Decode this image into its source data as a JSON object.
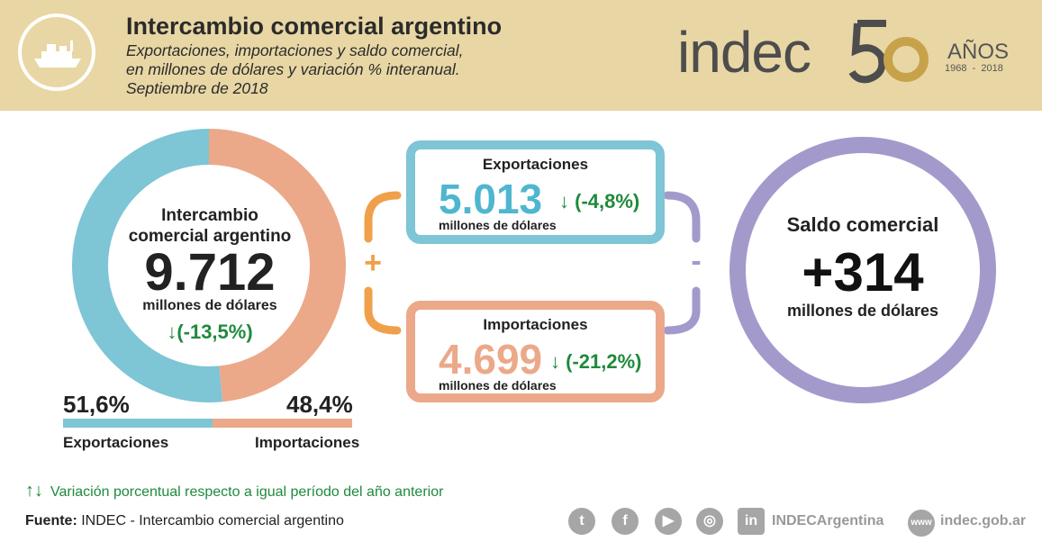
{
  "header": {
    "title": "Intercambio comercial argentino",
    "subtitle_line1": "Exportaciones, importaciones y saldo comercial,",
    "subtitle_line2": "en millones de dólares y variación % interanual.",
    "subtitle_line3": "Septiembre de 2018",
    "logo_text": "indec",
    "logo_number": "50",
    "logo_anos": "AÑOS",
    "logo_years": "1968  -  2018",
    "ship_icon": "ship-icon"
  },
  "colors": {
    "header_bg": "#e8d7a4",
    "exports": "#7ec5d6",
    "imports": "#eba98a",
    "saldo": "#a39acb",
    "connector_plus": "#f0a04b",
    "variation_green": "#1f8a3c",
    "export_number": "#4fb6cf",
    "import_number": "#eba98a"
  },
  "total": {
    "title": "Intercambio comercial argentino",
    "value": "9.712",
    "unit": "millones de dólares",
    "variation": "↓(-13,5%)",
    "share_exports_pct": 51.6,
    "share_imports_pct": 48.4
  },
  "shares": {
    "exports_label": "51,6%",
    "imports_label": "48,4%",
    "exports_name": "Exportaciones",
    "imports_name": "Importaciones"
  },
  "exports": {
    "title": "Exportaciones",
    "value": "5.013",
    "unit": "millones de dólares",
    "variation": "↓ (-4,8%)"
  },
  "imports": {
    "title": "Importaciones",
    "value": "4.699",
    "unit": "millones de dólares",
    "variation": "↓ (-21,2%)"
  },
  "operators": {
    "plus": "+",
    "minus": "-"
  },
  "saldo": {
    "title": "Saldo comercial",
    "value": "+314",
    "unit": "millones de dólares"
  },
  "footer": {
    "legend_arrows": "↑↓",
    "legend_text": "Variación porcentual respecto a igual período del año anterior",
    "source_label": "Fuente:",
    "source_text": " INDEC - Intercambio comercial argentino",
    "social_handle": "INDECArgentina",
    "www_badge": "www",
    "website": "indec.gob.ar",
    "social_icons": [
      "twitter-icon",
      "facebook-icon",
      "youtube-icon",
      "instagram-icon",
      "linkedin-icon"
    ],
    "social_glyphs": [
      "t",
      "f",
      "▶",
      "◎",
      "in"
    ]
  }
}
